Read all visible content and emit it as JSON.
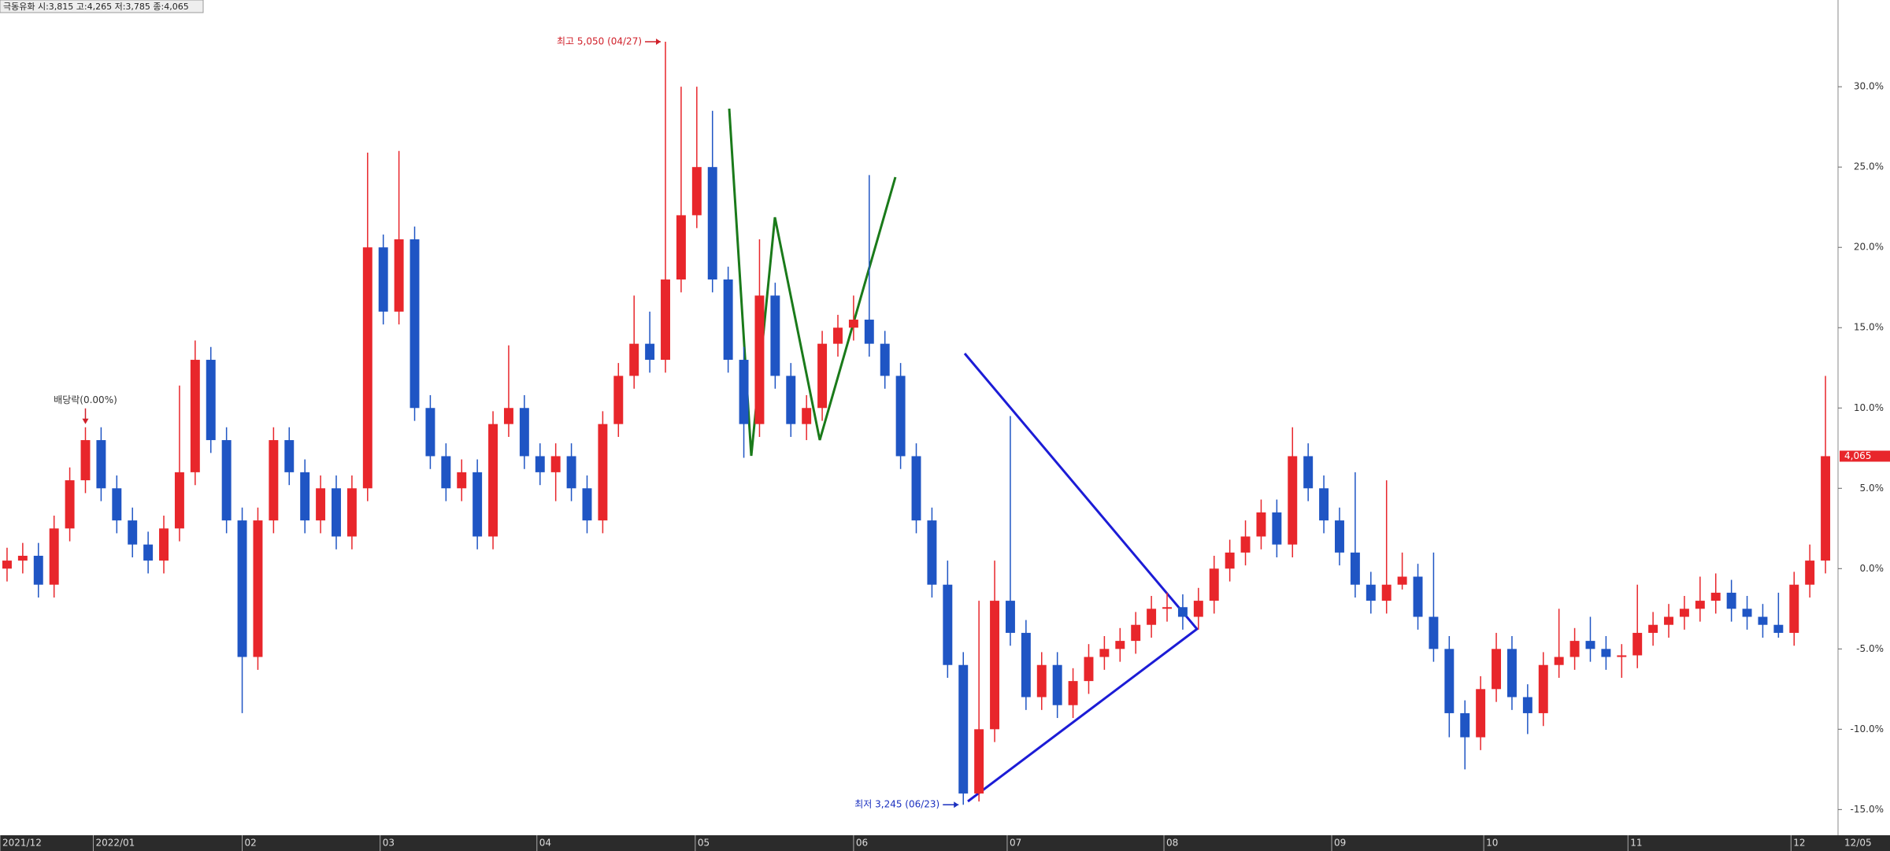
{
  "chart_data": {
    "type": "candlestick",
    "title": "극동유화 시:3,815 고:4,265 저:3,785 종:4,065",
    "series": [
      {
        "name": "극동유화",
        "up_color": "#e8262b",
        "down_color": "#1f55c4",
        "ohlc": [
          [
            0.0,
            1.3,
            -0.8,
            0.5
          ],
          [
            0.5,
            1.6,
            -0.3,
            0.8
          ],
          [
            0.8,
            1.6,
            -1.8,
            -1.0
          ],
          [
            -1.0,
            3.3,
            -1.8,
            2.5
          ],
          [
            2.5,
            6.3,
            1.7,
            5.5
          ],
          [
            5.5,
            8.8,
            4.7,
            8.0
          ],
          [
            8.0,
            8.8,
            4.2,
            5.0
          ],
          [
            5.0,
            5.8,
            2.2,
            3.0
          ],
          [
            3.0,
            3.8,
            0.7,
            1.5
          ],
          [
            1.5,
            2.3,
            -0.3,
            0.5
          ],
          [
            0.5,
            3.3,
            -0.3,
            2.5
          ],
          [
            2.5,
            11.4,
            1.7,
            6.0
          ],
          [
            6.0,
            14.2,
            5.2,
            13.0
          ],
          [
            13.0,
            13.8,
            7.2,
            8.0
          ],
          [
            8.0,
            8.8,
            2.2,
            3.0
          ],
          [
            3.0,
            3.8,
            -9.0,
            -5.5
          ],
          [
            -5.5,
            3.8,
            -6.3,
            3.0
          ],
          [
            3.0,
            8.8,
            2.2,
            8.0
          ],
          [
            8.0,
            8.8,
            5.2,
            6.0
          ],
          [
            6.0,
            6.8,
            2.2,
            3.0
          ],
          [
            3.0,
            5.8,
            2.2,
            5.0
          ],
          [
            5.0,
            5.8,
            1.2,
            2.0
          ],
          [
            2.0,
            5.8,
            1.2,
            5.0
          ],
          [
            5.0,
            25.9,
            4.2,
            20.0
          ],
          [
            20.0,
            20.8,
            15.2,
            16.0
          ],
          [
            16.0,
            26.0,
            15.2,
            20.5
          ],
          [
            20.5,
            21.3,
            9.2,
            10.0
          ],
          [
            10.0,
            10.8,
            6.2,
            7.0
          ],
          [
            7.0,
            7.8,
            4.2,
            5.0
          ],
          [
            5.0,
            6.8,
            4.2,
            6.0
          ],
          [
            6.0,
            6.8,
            1.2,
            2.0
          ],
          [
            2.0,
            9.8,
            1.2,
            9.0
          ],
          [
            9.0,
            13.9,
            8.2,
            10.0
          ],
          [
            10.0,
            10.8,
            6.2,
            7.0
          ],
          [
            7.0,
            7.8,
            5.2,
            6.0
          ],
          [
            6.0,
            7.8,
            4.2,
            7.0
          ],
          [
            7.0,
            7.8,
            4.2,
            5.0
          ],
          [
            5.0,
            5.8,
            2.2,
            3.0
          ],
          [
            3.0,
            9.8,
            2.2,
            9.0
          ],
          [
            9.0,
            12.8,
            8.2,
            12.0
          ],
          [
            12.0,
            17.0,
            11.2,
            14.0
          ],
          [
            14.0,
            16.0,
            12.2,
            13.0
          ],
          [
            13.0,
            32.8,
            12.2,
            18.0
          ],
          [
            18.0,
            30.0,
            17.2,
            22.0
          ],
          [
            22.0,
            30.0,
            21.2,
            25.0
          ],
          [
            25.0,
            28.5,
            17.2,
            18.0
          ],
          [
            18.0,
            18.8,
            12.2,
            13.0
          ],
          [
            13.0,
            13.8,
            6.9,
            9.0
          ],
          [
            9.0,
            20.5,
            8.2,
            17.0
          ],
          [
            17.0,
            17.8,
            11.2,
            12.0
          ],
          [
            12.0,
            12.8,
            8.2,
            9.0
          ],
          [
            9.0,
            10.8,
            8.0,
            10.0
          ],
          [
            10.0,
            14.8,
            9.2,
            14.0
          ],
          [
            14.0,
            15.8,
            13.2,
            15.0
          ],
          [
            15.0,
            17.0,
            14.2,
            15.5
          ],
          [
            15.5,
            24.5,
            13.2,
            14.0
          ],
          [
            14.0,
            14.8,
            11.2,
            12.0
          ],
          [
            12.0,
            12.8,
            6.2,
            7.0
          ],
          [
            7.0,
            7.8,
            2.2,
            3.0
          ],
          [
            3.0,
            3.8,
            -1.8,
            -1.0
          ],
          [
            -1.0,
            0.5,
            -6.8,
            -6.0
          ],
          [
            -6.0,
            -5.2,
            -14.7,
            -14.0
          ],
          [
            -14.0,
            -2.0,
            -14.5,
            -10.0
          ],
          [
            -10.0,
            0.5,
            -10.8,
            -2.0
          ],
          [
            -2.0,
            9.5,
            -4.8,
            -4.0
          ],
          [
            -4.0,
            -3.2,
            -8.8,
            -8.0
          ],
          [
            -8.0,
            -5.2,
            -8.8,
            -6.0
          ],
          [
            -6.0,
            -5.2,
            -9.3,
            -8.5
          ],
          [
            -8.5,
            -6.2,
            -9.3,
            -7.0
          ],
          [
            -7.0,
            -4.7,
            -7.8,
            -5.5
          ],
          [
            -5.5,
            -4.2,
            -6.3,
            -5.0
          ],
          [
            -5.0,
            -3.7,
            -5.8,
            -4.5
          ],
          [
            -4.5,
            -2.7,
            -5.3,
            -3.5
          ],
          [
            -3.5,
            -1.7,
            -4.3,
            -2.5
          ],
          [
            -2.5,
            -1.5,
            -3.3,
            -2.4
          ],
          [
            -2.4,
            -1.6,
            -3.8,
            -3.0
          ],
          [
            -3.0,
            -1.2,
            -3.8,
            -2.0
          ],
          [
            -2.0,
            0.8,
            -2.8,
            0.0
          ],
          [
            0.0,
            1.8,
            -0.8,
            1.0
          ],
          [
            1.0,
            3.0,
            0.2,
            2.0
          ],
          [
            2.0,
            4.3,
            1.2,
            3.5
          ],
          [
            3.5,
            4.3,
            0.7,
            1.5
          ],
          [
            1.5,
            8.8,
            0.7,
            7.0
          ],
          [
            7.0,
            7.8,
            4.2,
            5.0
          ],
          [
            5.0,
            5.8,
            2.2,
            3.0
          ],
          [
            3.0,
            3.8,
            0.2,
            1.0
          ],
          [
            1.0,
            6.0,
            -1.8,
            -1.0
          ],
          [
            -1.0,
            -0.2,
            -2.8,
            -2.0
          ],
          [
            -2.0,
            5.5,
            -2.8,
            -1.0
          ],
          [
            -1.0,
            1.0,
            -1.3,
            -0.5
          ],
          [
            -0.5,
            0.3,
            -3.8,
            -3.0
          ],
          [
            -3.0,
            1.0,
            -5.8,
            -5.0
          ],
          [
            -5.0,
            -4.2,
            -10.5,
            -9.0
          ],
          [
            -9.0,
            -8.2,
            -12.5,
            -10.5
          ],
          [
            -10.5,
            -6.7,
            -11.3,
            -7.5
          ],
          [
            -7.5,
            -4.0,
            -8.3,
            -5.0
          ],
          [
            -5.0,
            -4.2,
            -8.8,
            -8.0
          ],
          [
            -8.0,
            -7.2,
            -10.3,
            -9.0
          ],
          [
            -9.0,
            -5.2,
            -9.8,
            -6.0
          ],
          [
            -6.0,
            -2.5,
            -6.8,
            -5.5
          ],
          [
            -5.5,
            -3.7,
            -6.3,
            -4.5
          ],
          [
            -4.5,
            -3.0,
            -5.8,
            -5.0
          ],
          [
            -5.0,
            -4.2,
            -6.3,
            -5.5
          ],
          [
            -5.5,
            -4.7,
            -6.8,
            -5.4
          ],
          [
            -5.4,
            -1.0,
            -6.2,
            -4.0
          ],
          [
            -4.0,
            -2.7,
            -4.8,
            -3.5
          ],
          [
            -3.5,
            -2.2,
            -4.3,
            -3.0
          ],
          [
            -3.0,
            -1.7,
            -3.8,
            -2.5
          ],
          [
            -2.5,
            -0.5,
            -3.3,
            -2.0
          ],
          [
            -2.0,
            -0.3,
            -2.8,
            -1.5
          ],
          [
            -1.5,
            -0.7,
            -3.3,
            -2.5
          ],
          [
            -2.5,
            -1.7,
            -3.8,
            -3.0
          ],
          [
            -3.0,
            -2.2,
            -4.3,
            -3.5
          ],
          [
            -3.5,
            -1.5,
            -4.3,
            -4.0
          ],
          [
            -4.0,
            -0.2,
            -4.8,
            -1.0
          ],
          [
            -1.0,
            1.5,
            -1.8,
            0.5
          ],
          [
            0.5,
            12.0,
            -0.3,
            7.0
          ]
        ]
      }
    ],
    "xlim": [
      -0.45,
      116.8
    ],
    "xticks": [
      {
        "value": -0.45,
        "label": "2021/12"
      },
      {
        "value": 5.5,
        "label": "2022/01"
      },
      {
        "value": 15,
        "label": "02"
      },
      {
        "value": 23.8,
        "label": "03"
      },
      {
        "value": 33.8,
        "label": "04"
      },
      {
        "value": 43.9,
        "label": "05"
      },
      {
        "value": 54,
        "label": "06"
      },
      {
        "value": 63.8,
        "label": "07"
      },
      {
        "value": 73.8,
        "label": "08"
      },
      {
        "value": 84.5,
        "label": "09"
      },
      {
        "value": 94.2,
        "label": "10"
      },
      {
        "value": 103.4,
        "label": "11"
      },
      {
        "value": 113.8,
        "label": "12"
      }
    ],
    "x_end_label": "12/05",
    "ylim": [
      -16.6,
      35.4
    ],
    "yticks": [
      {
        "value": 30,
        "label": "30.0%"
      },
      {
        "value": 25,
        "label": "25.0%"
      },
      {
        "value": 20,
        "label": "20.0%"
      },
      {
        "value": 15,
        "label": "15.0%"
      },
      {
        "value": 10,
        "label": "10.0%"
      },
      {
        "value": 5,
        "label": "5.0%"
      },
      {
        "value": 0,
        "label": "0.0%"
      },
      {
        "value": -5,
        "label": "-5.0%"
      },
      {
        "value": -10,
        "label": "-10.0%"
      },
      {
        "value": -15,
        "label": "-15.0%"
      }
    ],
    "annotations": [
      {
        "text": "최고 5,050 (04/27)",
        "index": 42,
        "value": 32.8,
        "color": "#d0202a",
        "side": "left"
      },
      {
        "text": "최저 3,245 (06/23)",
        "index": 61,
        "value": -14.7,
        "color": "#1a2fbf",
        "side": "left"
      },
      {
        "text": "배당락(0.00%)",
        "index": 5,
        "value": 8.8,
        "color": "#333333",
        "side": "top"
      }
    ],
    "last_price_label": "4,065"
  }
}
